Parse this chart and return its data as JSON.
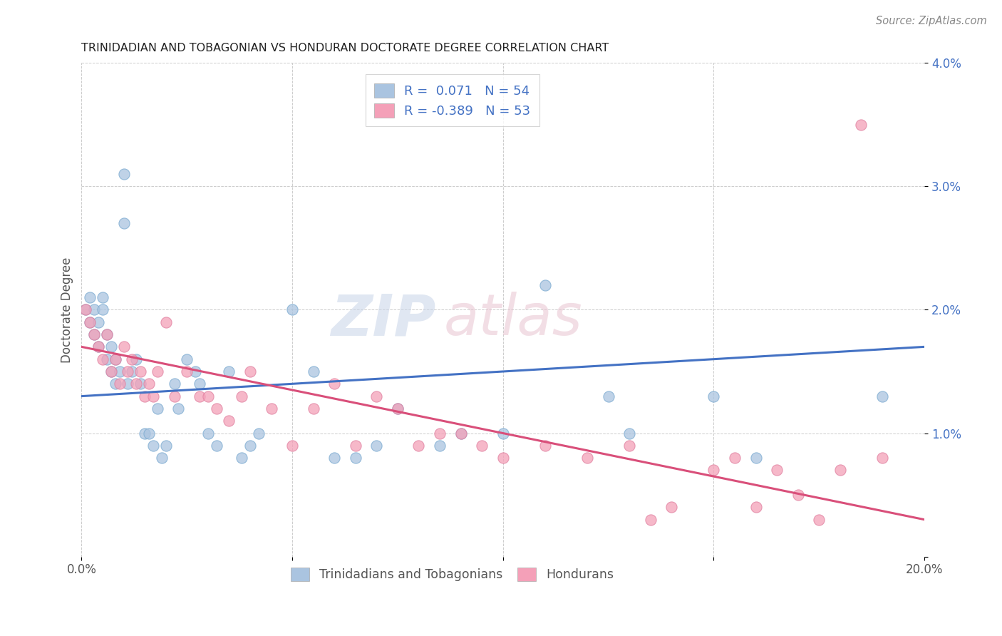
{
  "title": "TRINIDADIAN AND TOBAGONIAN VS HONDURAN DOCTORATE DEGREE CORRELATION CHART",
  "source": "Source: ZipAtlas.com",
  "ylabel": "Doctorate Degree",
  "xmin": 0.0,
  "xmax": 0.2,
  "ymin": 0.0,
  "ymax": 0.04,
  "color_blue": "#aac4e0",
  "color_pink": "#f4a0b8",
  "line_color_blue": "#4472c4",
  "line_color_pink": "#d94f7a",
  "watermark_zip": "ZIP",
  "watermark_atlas": "atlas",
  "blue_line_start_y": 0.013,
  "blue_line_end_y": 0.017,
  "pink_line_start_y": 0.017,
  "pink_line_end_y": 0.003,
  "blue_x": [
    0.001,
    0.002,
    0.002,
    0.003,
    0.003,
    0.004,
    0.004,
    0.005,
    0.005,
    0.006,
    0.006,
    0.007,
    0.007,
    0.008,
    0.008,
    0.009,
    0.01,
    0.01,
    0.011,
    0.012,
    0.013,
    0.014,
    0.015,
    0.016,
    0.017,
    0.018,
    0.019,
    0.02,
    0.022,
    0.023,
    0.025,
    0.027,
    0.028,
    0.03,
    0.032,
    0.035,
    0.038,
    0.04,
    0.042,
    0.05,
    0.055,
    0.06,
    0.065,
    0.07,
    0.075,
    0.085,
    0.09,
    0.1,
    0.11,
    0.125,
    0.13,
    0.15,
    0.16,
    0.19
  ],
  "blue_y": [
    0.02,
    0.021,
    0.019,
    0.02,
    0.018,
    0.019,
    0.017,
    0.021,
    0.02,
    0.016,
    0.018,
    0.015,
    0.017,
    0.016,
    0.014,
    0.015,
    0.031,
    0.027,
    0.014,
    0.015,
    0.016,
    0.014,
    0.01,
    0.01,
    0.009,
    0.012,
    0.008,
    0.009,
    0.014,
    0.012,
    0.016,
    0.015,
    0.014,
    0.01,
    0.009,
    0.015,
    0.008,
    0.009,
    0.01,
    0.02,
    0.015,
    0.008,
    0.008,
    0.009,
    0.012,
    0.009,
    0.01,
    0.01,
    0.022,
    0.013,
    0.01,
    0.013,
    0.008,
    0.013
  ],
  "pink_x": [
    0.001,
    0.002,
    0.003,
    0.004,
    0.005,
    0.006,
    0.007,
    0.008,
    0.009,
    0.01,
    0.011,
    0.012,
    0.013,
    0.014,
    0.015,
    0.016,
    0.017,
    0.018,
    0.02,
    0.022,
    0.025,
    0.028,
    0.03,
    0.032,
    0.035,
    0.038,
    0.04,
    0.045,
    0.05,
    0.055,
    0.06,
    0.065,
    0.07,
    0.075,
    0.08,
    0.085,
    0.09,
    0.095,
    0.1,
    0.11,
    0.12,
    0.13,
    0.135,
    0.14,
    0.15,
    0.155,
    0.16,
    0.165,
    0.17,
    0.175,
    0.18,
    0.185,
    0.19
  ],
  "pink_y": [
    0.02,
    0.019,
    0.018,
    0.017,
    0.016,
    0.018,
    0.015,
    0.016,
    0.014,
    0.017,
    0.015,
    0.016,
    0.014,
    0.015,
    0.013,
    0.014,
    0.013,
    0.015,
    0.019,
    0.013,
    0.015,
    0.013,
    0.013,
    0.012,
    0.011,
    0.013,
    0.015,
    0.012,
    0.009,
    0.012,
    0.014,
    0.009,
    0.013,
    0.012,
    0.009,
    0.01,
    0.01,
    0.009,
    0.008,
    0.009,
    0.008,
    0.009,
    0.003,
    0.004,
    0.007,
    0.008,
    0.004,
    0.007,
    0.005,
    0.003,
    0.007,
    0.035,
    0.008
  ]
}
